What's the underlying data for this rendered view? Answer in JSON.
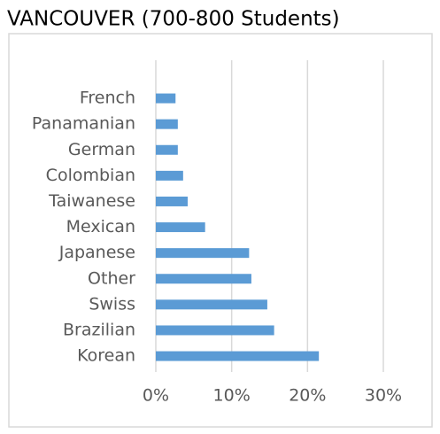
{
  "chart_data": {
    "type": "barh",
    "title": "VANCOUVER (700-800 Students)",
    "categories": [
      "French",
      "Panamanian",
      "German",
      "Colombian",
      "Taiwanese",
      "Mexican",
      "Japanese",
      "Other",
      "Swiss",
      "Brazilian",
      "Korean"
    ],
    "values": [
      2.6,
      2.9,
      2.9,
      3.6,
      4.2,
      6.5,
      12.3,
      12.6,
      14.7,
      15.6,
      21.5
    ],
    "color": "#5b9bd5",
    "xlim": [
      0,
      30
    ],
    "xticks": [
      {
        "value": 0,
        "label": "0%"
      },
      {
        "value": 10,
        "label": "10%"
      },
      {
        "value": 20,
        "label": "20%"
      },
      {
        "value": 30,
        "label": "30%"
      }
    ],
    "grid": true
  }
}
